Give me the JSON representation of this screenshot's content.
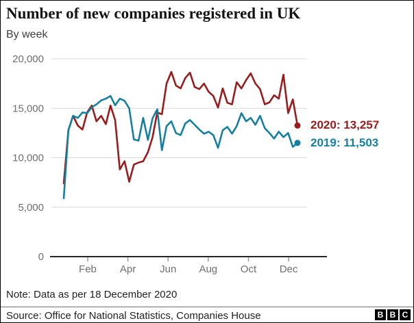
{
  "header": {
    "title": "Number of new companies registered in UK",
    "subtitle": "By week"
  },
  "footer": {
    "note": "Note: Data as per 18 December 2020",
    "source": "Source: Office for National Statistics, Companies House",
    "logo_letters": [
      "B",
      "B",
      "C"
    ]
  },
  "colors": {
    "series_2020": "#9a1b1c",
    "series_2019": "#1380a1",
    "gridline": "#d9d9d9",
    "axis_line": "#262626",
    "tick": "#999999",
    "axis_label": "#6e6e73"
  },
  "chart_data": {
    "type": "line",
    "title": "Number of new companies registered in UK",
    "subtitle": "By week",
    "xlabel": "",
    "ylabel": "",
    "x_unit": "week of year (weekly data, Jan to 18 Dec)",
    "ylim": [
      0,
      20000
    ],
    "grid": true,
    "legend_position": "right-end-labels",
    "yticks": [
      0,
      5000,
      10000,
      15000,
      20000
    ],
    "ytick_labels": [
      "0",
      "5,000",
      "10,000",
      "15,000",
      "20,000"
    ],
    "xticks": [
      {
        "label": "Feb",
        "week": 6.13
      },
      {
        "label": "Apr",
        "week": 14.72
      },
      {
        "label": "Jun",
        "week": 23.32
      },
      {
        "label": "Aug",
        "week": 31.91
      },
      {
        "label": "Oct",
        "week": 40.51
      },
      {
        "label": "Dec",
        "week": 49.1
      }
    ],
    "series": [
      {
        "name": "2020",
        "color": "#9a1b1c",
        "end_label": "2020: 13,257",
        "final_value": 13257,
        "values": [
          7400,
          12800,
          14240,
          13250,
          12850,
          14580,
          15280,
          13680,
          14240,
          13400,
          15280,
          13800,
          8820,
          9650,
          7570,
          9300,
          9510,
          9650,
          10560,
          12080,
          14580,
          14400,
          17500,
          18680,
          17300,
          17010,
          18060,
          18600,
          17150,
          16940,
          17500,
          16670,
          16250,
          15070,
          17010,
          15560,
          15400,
          17640,
          17010,
          17850,
          18540,
          17500,
          16940,
          15400,
          15600,
          16320,
          15970,
          18400,
          14510,
          15900,
          13257
        ]
      },
      {
        "name": "2019",
        "color": "#1380a1",
        "end_label": "2019: 11,503",
        "final_value": 11503,
        "values": [
          5900,
          12780,
          14240,
          14030,
          14580,
          14500,
          15100,
          15400,
          15800,
          15970,
          16250,
          15300,
          15970,
          15760,
          15000,
          11850,
          11730,
          14030,
          11800,
          14000,
          14900,
          10760,
          13200,
          13680,
          12500,
          12290,
          13470,
          13820,
          13330,
          12850,
          12430,
          12640,
          12290,
          11000,
          12780,
          13120,
          12430,
          13200,
          14510,
          13680,
          14030,
          13330,
          14240,
          12990,
          12500,
          11940,
          12640,
          12080,
          12500,
          11100,
          11503
        ]
      }
    ]
  }
}
